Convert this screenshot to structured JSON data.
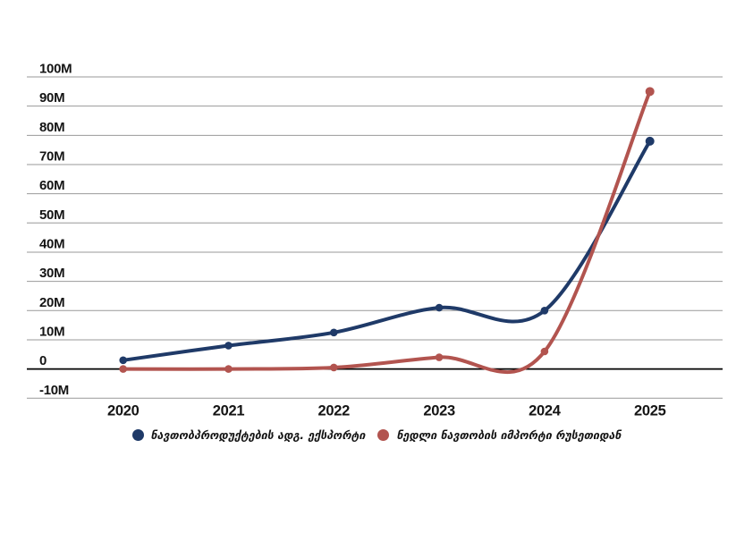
{
  "chart_data": {
    "type": "line",
    "title": "",
    "xlabel": "",
    "ylabel": "",
    "categories": [
      "2020",
      "2021",
      "2022",
      "2023",
      "2024",
      "2025"
    ],
    "series": [
      {
        "name": "ნავთობპროდუქტების ადგ. ექსპორტი",
        "color": "#1f3a68",
        "values_unit": "M",
        "values": [
          3,
          8,
          12.5,
          21,
          20,
          78
        ]
      },
      {
        "name": "ნედლი ნავთობის იმპორტი რუსეთიდან",
        "color": "#b2544f",
        "values_unit": "M",
        "values": [
          0,
          0,
          0.5,
          4,
          6,
          95
        ]
      }
    ],
    "y_ticks": [
      {
        "value": 100,
        "label": "100M"
      },
      {
        "value": 90,
        "label": "90M"
      },
      {
        "value": 80,
        "label": "80M"
      },
      {
        "value": 70,
        "label": "70M"
      },
      {
        "value": 60,
        "label": "60M"
      },
      {
        "value": 50,
        "label": "50M"
      },
      {
        "value": 40,
        "label": "40M"
      },
      {
        "value": 30,
        "label": "30M"
      },
      {
        "value": 20,
        "label": "20M"
      },
      {
        "value": 10,
        "label": "10M"
      },
      {
        "value": 0,
        "label": "0"
      },
      {
        "value": -10,
        "label": "-10M"
      }
    ],
    "ylim": [
      -10,
      100
    ],
    "grid": "horizontal",
    "gridline_color": "#999999",
    "zero_line_color": "#000000",
    "legend_position": "bottom",
    "line_style": "smooth",
    "markers": "circle"
  }
}
